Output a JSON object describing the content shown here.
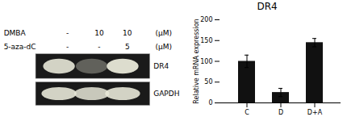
{
  "chart_data": {
    "type": "bar",
    "title": "DR4",
    "categories": [
      "C",
      "D",
      "D+A"
    ],
    "values": [
      100,
      25,
      145
    ],
    "errors": [
      15,
      10,
      10
    ],
    "color": "#111111",
    "ylabel": "Relative mRNA expression",
    "ylim": [
      0,
      200
    ],
    "yticks": [
      0,
      50,
      100,
      150,
      200
    ],
    "grid": false,
    "annotations": {
      "rows": [
        {
          "name": "DMBA",
          "values": [
            "-",
            "10",
            "10"
          ],
          "unit": "(μM)"
        },
        {
          "name": "5-aza-dC",
          "values": [
            "-",
            "-",
            "5"
          ],
          "unit": "(μM)"
        }
      ],
      "bands": [
        "DR4",
        "GAPDH"
      ]
    }
  }
}
